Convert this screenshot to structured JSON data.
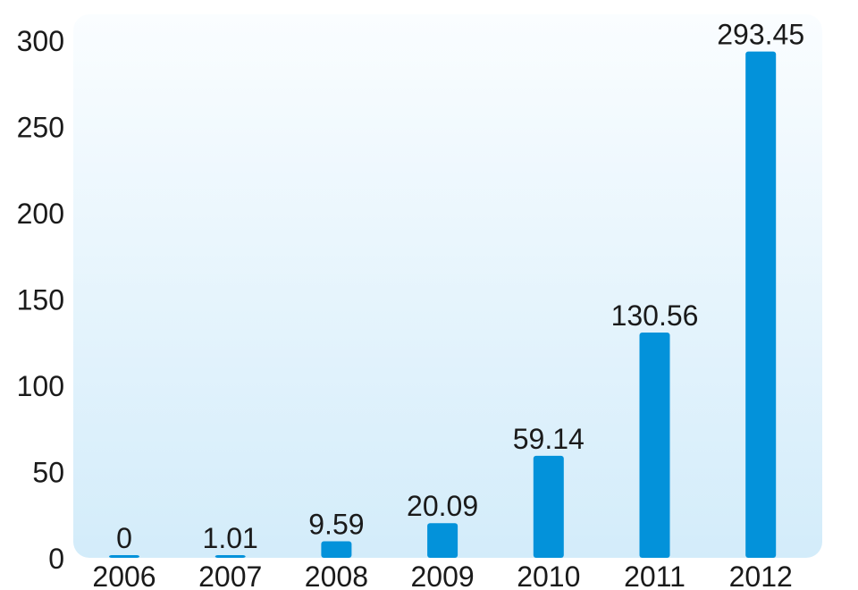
{
  "chart_data": {
    "type": "bar",
    "categories": [
      "2006",
      "2007",
      "2008",
      "2009",
      "2010",
      "2011",
      "2012"
    ],
    "values": [
      0,
      1.01,
      9.59,
      20.09,
      59.14,
      130.56,
      293.45
    ],
    "data_labels": [
      "0",
      "1.01",
      "9.59",
      "20.09",
      "59.14",
      "130.56",
      "293.45"
    ],
    "y_ticks": [
      "0",
      "50",
      "100",
      "150",
      "200",
      "250",
      "300"
    ],
    "ylim": [
      0,
      300
    ],
    "grid": false,
    "legend": "none",
    "colors": {
      "bar": "#0392da",
      "plot_bg_top": "#fafdff",
      "plot_bg_bottom": "#d3ecfa",
      "text": "#1a1a1a"
    }
  }
}
